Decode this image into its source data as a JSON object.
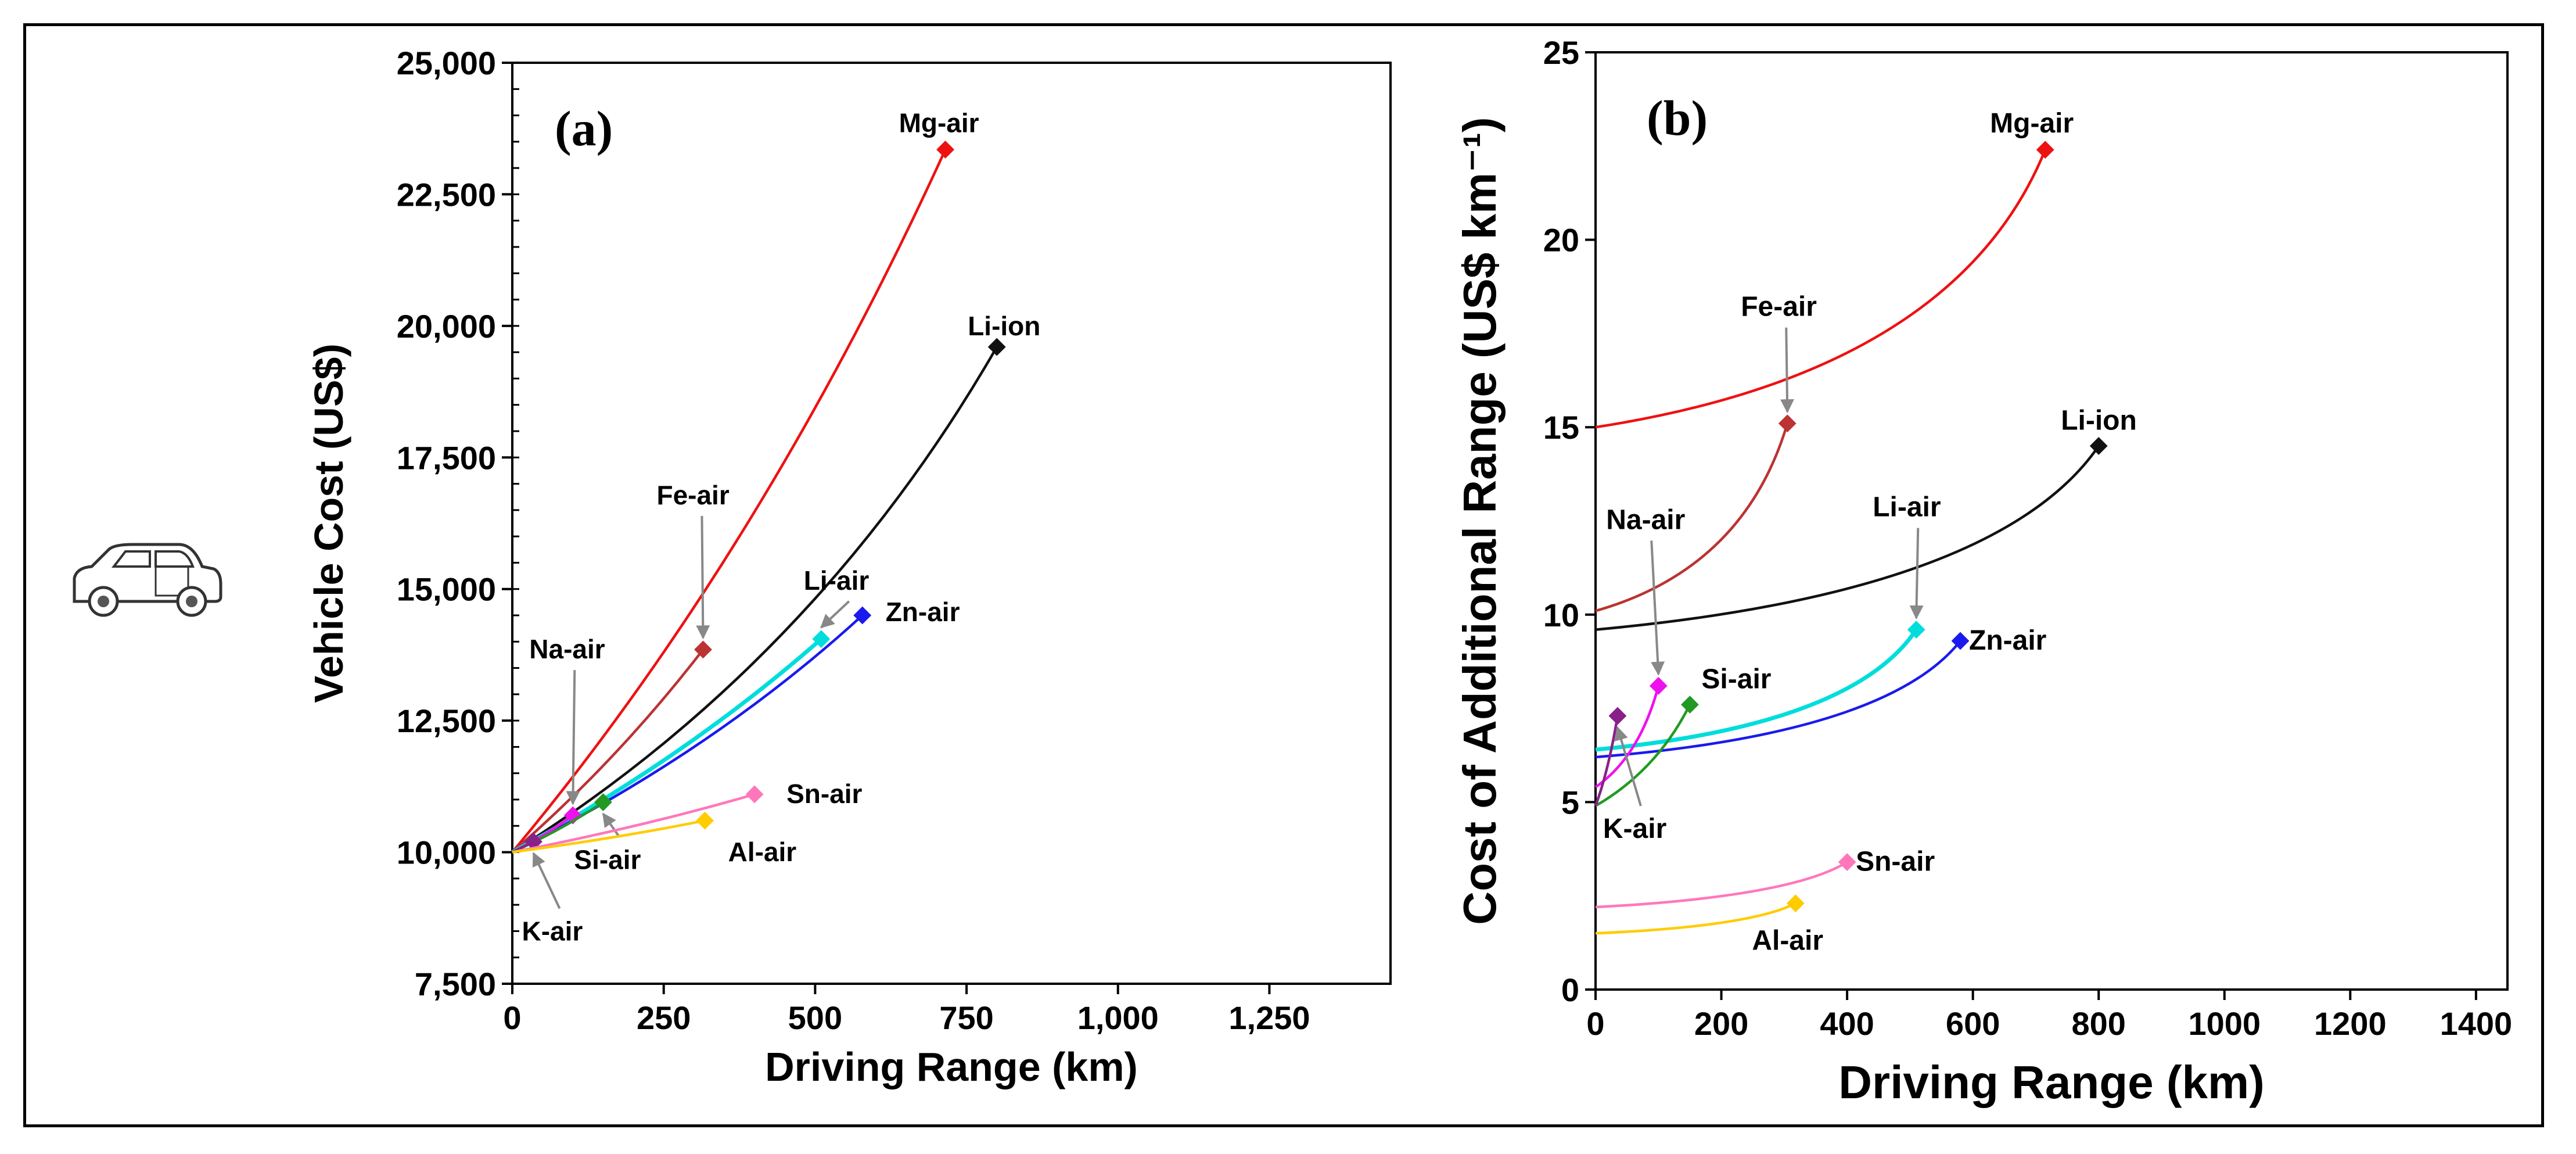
{
  "chart_data": [
    {
      "panel": "(a)",
      "type": "line",
      "xlabel": "Driving Range (km)",
      "ylabel": "Vehicle Cost (US$)",
      "xlim": [
        0,
        1450
      ],
      "ylim": [
        7500,
        25000
      ],
      "xticks": [
        0,
        250,
        500,
        750,
        1000,
        1250
      ],
      "xtick_labels": [
        "0",
        "250",
        "500",
        "750",
        "1,000",
        "1,250"
      ],
      "yticks": [
        7500,
        10000,
        12500,
        15000,
        17500,
        20000,
        22500,
        25000
      ],
      "ytick_labels": [
        "7,500",
        "10,000",
        "12,500",
        "15,000",
        "17,500",
        "20,000",
        "22,500",
        "25,000"
      ],
      "series": [
        {
          "name": "Mg-air",
          "color": "#ee1111",
          "x": [
            0,
            715
          ],
          "y": [
            10000,
            23350
          ],
          "curve": 0.15
        },
        {
          "name": "Li-ion",
          "color": "#111111",
          "x": [
            0,
            800
          ],
          "y": [
            10000,
            19600
          ],
          "curve": 0.25
        },
        {
          "name": "Fe-air",
          "color": "#bb3333",
          "x": [
            0,
            315
          ],
          "y": [
            10000,
            13850
          ],
          "curve": 0.1
        },
        {
          "name": "Li-air",
          "color": "#00dddd",
          "x": [
            0,
            510
          ],
          "y": [
            10000,
            14050
          ],
          "curve": 0.12
        },
        {
          "name": "Zn-air",
          "color": "#1a1aee",
          "x": [
            0,
            578
          ],
          "y": [
            10000,
            14500
          ],
          "curve": 0.15
        },
        {
          "name": "Na-air",
          "color": "#ee11ee",
          "x": [
            0,
            100
          ],
          "y": [
            10000,
            10700
          ],
          "curve": 0.1
        },
        {
          "name": "Si-air",
          "color": "#229922",
          "x": [
            0,
            150
          ],
          "y": [
            10000,
            10950
          ],
          "curve": 0.1
        },
        {
          "name": "K-air",
          "color": "#882288",
          "x": [
            0,
            35
          ],
          "y": [
            10000,
            10200
          ],
          "curve": 0.0
        },
        {
          "name": "Sn-air",
          "color": "#ff77bb",
          "x": [
            0,
            400
          ],
          "y": [
            10000,
            11100
          ],
          "curve": 0.1
        },
        {
          "name": "Al-air",
          "color": "#ffcc00",
          "x": [
            0,
            318
          ],
          "y": [
            10000,
            10600
          ],
          "curve": 0.1
        }
      ],
      "icon": "car-icon"
    },
    {
      "panel": "(b)",
      "type": "line",
      "xlabel": "Driving Range (km)",
      "ylabel": "Cost of Additional Range (US$ km⁻¹)",
      "xlim": [
        0,
        1450
      ],
      "ylim": [
        0,
        25
      ],
      "xticks": [
        0,
        200,
        400,
        600,
        800,
        1000,
        1200,
        1400
      ],
      "xtick_labels": [
        "0",
        "200",
        "400",
        "600",
        "800",
        "1000",
        "1200",
        "1400"
      ],
      "yticks": [
        0,
        5,
        10,
        15,
        20,
        25
      ],
      "ytick_labels": [
        "0",
        "5",
        "10",
        "15",
        "20",
        "25"
      ],
      "series": [
        {
          "name": "Mg-air",
          "color": "#ee1111",
          "x": [
            0,
            715
          ],
          "y": [
            15.0,
            22.4
          ],
          "curve": 0.6
        },
        {
          "name": "Fe-air",
          "color": "#bb3333",
          "x": [
            0,
            305
          ],
          "y": [
            10.1,
            15.1
          ],
          "curve": 0.55
        },
        {
          "name": "Li-ion",
          "color": "#111111",
          "x": [
            0,
            800
          ],
          "y": [
            9.6,
            14.5
          ],
          "curve": 0.6
        },
        {
          "name": "Li-air",
          "color": "#00dddd",
          "x": [
            0,
            510
          ],
          "y": [
            6.4,
            9.6
          ],
          "curve": 0.6
        },
        {
          "name": "Zn-air",
          "color": "#1a1aee",
          "x": [
            0,
            580
          ],
          "y": [
            6.2,
            9.3
          ],
          "curve": 0.6
        },
        {
          "name": "Na-air",
          "color": "#ee11ee",
          "x": [
            0,
            100
          ],
          "y": [
            5.4,
            8.1
          ],
          "curve": 0.4
        },
        {
          "name": "Si-air",
          "color": "#229922",
          "x": [
            0,
            150
          ],
          "y": [
            4.9,
            7.6
          ],
          "curve": 0.3
        },
        {
          "name": "K-air",
          "color": "#882288",
          "x": [
            0,
            35
          ],
          "y": [
            4.9,
            7.3
          ],
          "curve": 0.2
        },
        {
          "name": "Sn-air",
          "color": "#ff77bb",
          "x": [
            0,
            400
          ],
          "y": [
            2.2,
            3.4
          ],
          "curve": 0.55
        },
        {
          "name": "Al-air",
          "color": "#ffcc00",
          "x": [
            0,
            318
          ],
          "y": [
            1.5,
            2.3
          ],
          "curve": 0.55
        }
      ]
    }
  ]
}
